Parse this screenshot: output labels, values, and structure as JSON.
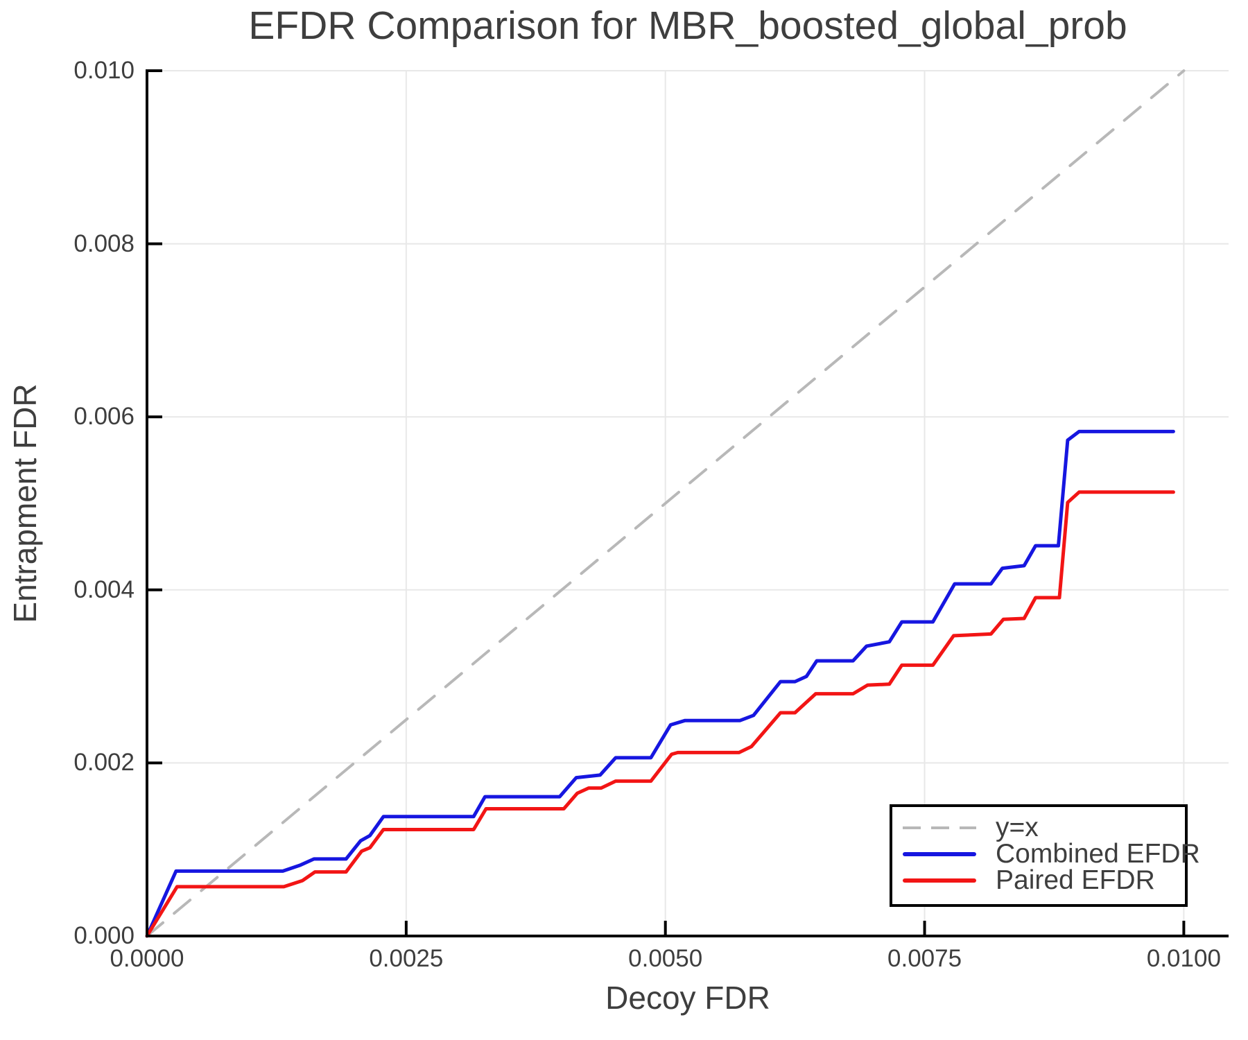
{
  "title": "EFDR Comparison for MBR_boosted_global_prob",
  "chart_data": {
    "type": "line",
    "title": "EFDR Comparison for MBR_boosted_global_prob",
    "xlabel": "Decoy FDR",
    "ylabel": "Entrapment FDR",
    "xlim": [
      0,
      0.010432
    ],
    "ylim": [
      0,
      0.010056
    ],
    "grid": true,
    "legend_position": "lower right",
    "x_ticks": [
      {
        "v": 0.0,
        "label": "0.0000"
      },
      {
        "v": 0.0025,
        "label": "0.0025"
      },
      {
        "v": 0.005,
        "label": "0.0050"
      },
      {
        "v": 0.0075,
        "label": "0.0075"
      },
      {
        "v": 0.01,
        "label": "0.0100"
      }
    ],
    "y_ticks": [
      {
        "v": 0.0,
        "label": "0.000"
      },
      {
        "v": 0.002,
        "label": "0.002"
      },
      {
        "v": 0.004,
        "label": "0.004"
      },
      {
        "v": 0.006,
        "label": "0.006"
      },
      {
        "v": 0.008,
        "label": "0.008"
      },
      {
        "v": 0.01,
        "label": "0.010"
      }
    ],
    "series": [
      {
        "name": "y=x",
        "color": "#b8b8b8",
        "style": "dashed",
        "line_width": 4,
        "points": [
          [
            0,
            0
          ],
          [
            0.01,
            0.01
          ]
        ]
      },
      {
        "name": "Combined EFDR",
        "color": "#1616e0",
        "style": "solid",
        "line_width": 5,
        "points": [
          [
            0,
            0
          ],
          [
            0.00028,
            0.00075
          ],
          [
            0.00131,
            0.00075
          ],
          [
            0.00148,
            0.00082
          ],
          [
            0.00161,
            0.00089
          ],
          [
            0.00192,
            0.00089
          ],
          [
            0.00206,
            0.0011
          ],
          [
            0.00215,
            0.00116
          ],
          [
            0.00228,
            0.00138
          ],
          [
            0.00315,
            0.00138
          ],
          [
            0.00326,
            0.00161
          ],
          [
            0.00398,
            0.00161
          ],
          [
            0.00414,
            0.00183
          ],
          [
            0.00437,
            0.00186
          ],
          [
            0.00452,
            0.00206
          ],
          [
            0.00486,
            0.00206
          ],
          [
            0.00505,
            0.00244
          ],
          [
            0.00519,
            0.00249
          ],
          [
            0.00572,
            0.00249
          ],
          [
            0.00585,
            0.00255
          ],
          [
            0.00611,
            0.00294
          ],
          [
            0.00625,
            0.00294
          ],
          [
            0.00636,
            0.003
          ],
          [
            0.00646,
            0.00318
          ],
          [
            0.00681,
            0.00318
          ],
          [
            0.00694,
            0.00335
          ],
          [
            0.00716,
            0.0034
          ],
          [
            0.00728,
            0.00363
          ],
          [
            0.00758,
            0.00363
          ],
          [
            0.00779,
            0.00407
          ],
          [
            0.00814,
            0.00407
          ],
          [
            0.00825,
            0.00425
          ],
          [
            0.00846,
            0.00428
          ],
          [
            0.00857,
            0.00451
          ],
          [
            0.00879,
            0.00451
          ],
          [
            0.00888,
            0.00573
          ],
          [
            0.00899,
            0.00583
          ],
          [
            0.0099,
            0.00583
          ]
        ]
      },
      {
        "name": "Paired EFDR",
        "color": "#f21515",
        "style": "solid",
        "line_width": 5,
        "points": [
          [
            0,
            0
          ],
          [
            0.00029,
            0.00057
          ],
          [
            0.00132,
            0.00057
          ],
          [
            0.0015,
            0.00064
          ],
          [
            0.00162,
            0.00074
          ],
          [
            0.00192,
            0.00074
          ],
          [
            0.00207,
            0.00098
          ],
          [
            0.00215,
            0.00102
          ],
          [
            0.00228,
            0.00123
          ],
          [
            0.00315,
            0.00123
          ],
          [
            0.00327,
            0.00147
          ],
          [
            0.00402,
            0.00147
          ],
          [
            0.00415,
            0.00165
          ],
          [
            0.00426,
            0.00171
          ],
          [
            0.00438,
            0.00171
          ],
          [
            0.00452,
            0.00179
          ],
          [
            0.00486,
            0.00179
          ],
          [
            0.00506,
            0.0021
          ],
          [
            0.00512,
            0.00212
          ],
          [
            0.00571,
            0.00212
          ],
          [
            0.00583,
            0.00219
          ],
          [
            0.00611,
            0.00258
          ],
          [
            0.00625,
            0.00258
          ],
          [
            0.00645,
            0.0028
          ],
          [
            0.00681,
            0.0028
          ],
          [
            0.00695,
            0.0029
          ],
          [
            0.00716,
            0.00291
          ],
          [
            0.00728,
            0.00313
          ],
          [
            0.00758,
            0.00313
          ],
          [
            0.00778,
            0.00347
          ],
          [
            0.00814,
            0.00349
          ],
          [
            0.00826,
            0.00366
          ],
          [
            0.00846,
            0.00367
          ],
          [
            0.00857,
            0.00391
          ],
          [
            0.0088,
            0.00391
          ],
          [
            0.00888,
            0.00501
          ],
          [
            0.00899,
            0.00513
          ],
          [
            0.0099,
            0.00513
          ]
        ]
      }
    ],
    "colors": {
      "grid": "#e8e8e8",
      "spine": "#000000",
      "text": "#3e3e3e"
    }
  }
}
